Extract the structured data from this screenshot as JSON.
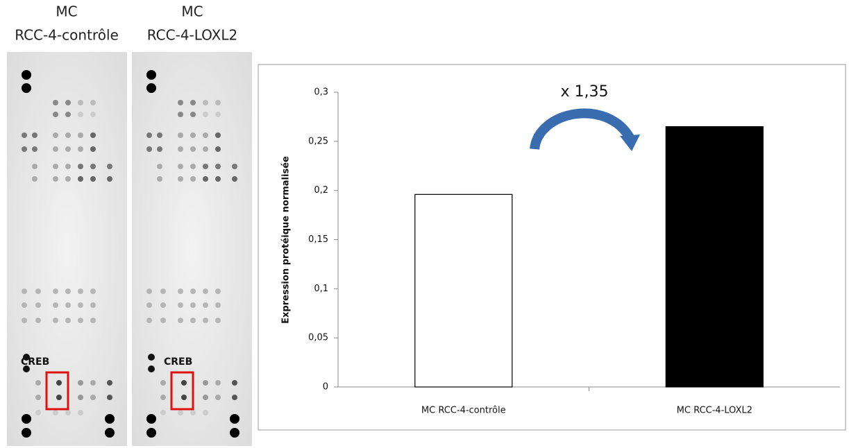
{
  "blots": [
    {
      "title": [
        "MC",
        "RCC-4-contrôle"
      ],
      "annotation": "CREB"
    },
    {
      "title": [
        "MC",
        "RCC-4-LOXL2"
      ],
      "annotation": "CREB"
    }
  ],
  "chart_data": {
    "type": "bar",
    "y_label": "Expression protéique normalisée",
    "annotation": "x 1,35",
    "categories": [
      "MC RCC-4-contrôle",
      "MC RCC-4-LOXL2"
    ],
    "values": [
      0.196,
      0.265
    ],
    "colors": [
      "#ffffff",
      "#000000"
    ],
    "ylim": [
      0,
      0.3
    ],
    "yticks": [
      0,
      {
        "value": 0.05,
        "label": "0,05"
      },
      {
        "value": 0.1,
        "label": "0,1"
      },
      {
        "value": 0.15,
        "label": "0,15"
      },
      {
        "value": 0.2,
        "label": "0,2"
      },
      {
        "value": 0.25,
        "label": "0,25"
      },
      {
        "value": 0.3,
        "label": "0,3"
      }
    ],
    "grid": false
  }
}
